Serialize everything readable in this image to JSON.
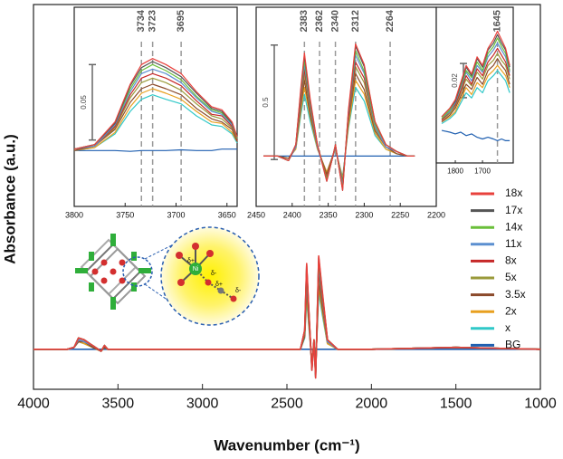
{
  "chart_data": [
    {
      "type": "line",
      "x_label": "Wavenumber (cm⁻¹)",
      "y_label": "Absorbance (a.u.)",
      "xlim": [
        4000,
        1000
      ],
      "xticks": [
        4000,
        3500,
        3000,
        2500,
        2000,
        1500,
        1000
      ],
      "ylim": [
        -0.21,
        1.81
      ],
      "legend": "right",
      "x": [
        4000,
        3800,
        3760,
        3734,
        3700,
        3650,
        3600,
        3580,
        3560,
        3500,
        3000,
        2500,
        2420,
        2395,
        2383,
        2370,
        2352,
        2340,
        2330,
        2312,
        2290,
        2260,
        2200,
        2000,
        1500,
        1000
      ],
      "series": [
        {
          "name": "18x",
          "color": "#e8413c",
          "values": [
            0,
            0,
            0.01,
            0.06,
            0.05,
            0.02,
            -0.01,
            0.02,
            0,
            0,
            0,
            0,
            0,
            0.1,
            0.45,
            0.2,
            -0.11,
            0.05,
            -0.15,
            0.49,
            0.3,
            0.05,
            0,
            0,
            0.01,
            0
          ]
        },
        {
          "name": "17x",
          "color": "#555555",
          "values": [
            0,
            0,
            0.01,
            0.06,
            0.05,
            0.02,
            -0.01,
            0.02,
            0,
            0,
            0,
            0,
            0,
            0.1,
            0.44,
            0.19,
            -0.11,
            0.05,
            -0.15,
            0.48,
            0.29,
            0.05,
            0,
            0,
            0.01,
            0
          ]
        },
        {
          "name": "14x",
          "color": "#6abf3a",
          "values": [
            0,
            0,
            0.01,
            0.06,
            0.05,
            0.02,
            -0.01,
            0.02,
            0,
            0,
            0,
            0,
            0,
            0.09,
            0.42,
            0.19,
            -0.1,
            0.05,
            -0.14,
            0.46,
            0.28,
            0.05,
            0,
            0,
            0.01,
            0
          ]
        },
        {
          "name": "11x",
          "color": "#5b8fd0",
          "values": [
            0,
            0,
            0.01,
            0.05,
            0.04,
            0.02,
            -0.01,
            0.02,
            0,
            0,
            0,
            0,
            0,
            0.09,
            0.4,
            0.18,
            -0.1,
            0.04,
            -0.13,
            0.44,
            0.27,
            0.04,
            0,
            0,
            0.01,
            0
          ]
        },
        {
          "name": "8x",
          "color": "#c62828",
          "values": [
            0,
            0,
            0.01,
            0.05,
            0.04,
            0.02,
            -0.01,
            0.02,
            0,
            0,
            0,
            0,
            0,
            0.08,
            0.38,
            0.17,
            -0.09,
            0.04,
            -0.13,
            0.41,
            0.25,
            0.04,
            0,
            0,
            0.01,
            0
          ]
        },
        {
          "name": "5x",
          "color": "#9a9a3a",
          "values": [
            0,
            0,
            0.01,
            0.05,
            0.04,
            0.02,
            -0.01,
            0.02,
            0,
            0,
            0,
            0,
            0,
            0.08,
            0.36,
            0.16,
            -0.09,
            0.04,
            -0.12,
            0.39,
            0.24,
            0.04,
            0,
            0,
            0.01,
            0
          ]
        },
        {
          "name": "3.5x",
          "color": "#8b4a2b",
          "values": [
            0,
            0,
            0.01,
            0.04,
            0.04,
            0.01,
            -0.01,
            0.01,
            0,
            0,
            0,
            0,
            0,
            0.07,
            0.33,
            0.15,
            -0.08,
            0.04,
            -0.11,
            0.36,
            0.22,
            0.04,
            0,
            0,
            0.01,
            0
          ]
        },
        {
          "name": "2x",
          "color": "#e8a020",
          "values": [
            0,
            0,
            0.01,
            0.04,
            0.03,
            0.01,
            -0.01,
            0.01,
            0,
            0,
            0,
            0,
            0,
            0.07,
            0.3,
            0.13,
            -0.07,
            0.03,
            -0.1,
            0.33,
            0.2,
            0.03,
            0,
            0,
            0.01,
            0
          ]
        },
        {
          "name": "x",
          "color": "#30c8c8",
          "values": [
            0,
            0,
            0.01,
            0.04,
            0.03,
            0.01,
            -0.01,
            0.01,
            0,
            0,
            0,
            0,
            0,
            0.06,
            0.27,
            0.12,
            -0.07,
            0.03,
            -0.09,
            0.3,
            0.18,
            0.03,
            0,
            0,
            0.01,
            0
          ]
        },
        {
          "name": "BG",
          "color": "#1f5fb0",
          "values": [
            0,
            0,
            0,
            0,
            0,
            0,
            0,
            0,
            0,
            0,
            0,
            0,
            0,
            0,
            0,
            0,
            0,
            0,
            0,
            0,
            0,
            0,
            0,
            0,
            0,
            0
          ]
        }
      ]
    },
    {
      "type": "line",
      "xlim": [
        3800,
        3640
      ],
      "xticks": [
        3800,
        3750,
        3700,
        3650
      ],
      "ylim": [
        -0.036,
        0.096
      ],
      "markers": [
        3734,
        3723,
        3695
      ],
      "scale_bar": 0.05,
      "x": [
        3800,
        3780,
        3760,
        3745,
        3734,
        3723,
        3710,
        3695,
        3680,
        3665,
        3655,
        3645,
        3640
      ],
      "series": [
        {
          "values": [
            0.002,
            0.005,
            0.02,
            0.045,
            0.058,
            0.062,
            0.058,
            0.052,
            0.04,
            0.03,
            0.028,
            0.02,
            0.01
          ]
        },
        {
          "values": [
            0.002,
            0.005,
            0.019,
            0.044,
            0.056,
            0.06,
            0.056,
            0.05,
            0.039,
            0.029,
            0.027,
            0.019,
            0.01
          ]
        },
        {
          "values": [
            0.002,
            0.005,
            0.019,
            0.042,
            0.054,
            0.058,
            0.054,
            0.048,
            0.037,
            0.028,
            0.026,
            0.019,
            0.009
          ]
        },
        {
          "values": [
            0.002,
            0.004,
            0.018,
            0.04,
            0.052,
            0.055,
            0.052,
            0.046,
            0.036,
            0.027,
            0.025,
            0.018,
            0.009
          ]
        },
        {
          "values": [
            0.002,
            0.004,
            0.017,
            0.038,
            0.049,
            0.052,
            0.049,
            0.044,
            0.034,
            0.025,
            0.024,
            0.017,
            0.008
          ]
        },
        {
          "values": [
            0.002,
            0.004,
            0.016,
            0.036,
            0.046,
            0.049,
            0.046,
            0.041,
            0.032,
            0.024,
            0.022,
            0.016,
            0.008
          ]
        },
        {
          "values": [
            0.001,
            0.004,
            0.015,
            0.033,
            0.042,
            0.045,
            0.042,
            0.038,
            0.029,
            0.022,
            0.02,
            0.015,
            0.007
          ]
        },
        {
          "values": [
            0.001,
            0.003,
            0.013,
            0.03,
            0.039,
            0.042,
            0.039,
            0.035,
            0.027,
            0.02,
            0.019,
            0.013,
            0.007
          ]
        },
        {
          "values": [
            0.001,
            0.003,
            0.012,
            0.027,
            0.035,
            0.038,
            0.035,
            0.032,
            0.024,
            0.018,
            0.017,
            0.012,
            0.006
          ]
        },
        {
          "values": [
            0.001,
            0.001,
            0.001,
            0.0005,
            0.001,
            0.001,
            0.001,
            0.0015,
            0.001,
            0.001,
            0.002,
            0.002,
            0.002
          ]
        }
      ]
    },
    {
      "type": "line",
      "xlim": [
        2450,
        2200
      ],
      "xticks": [
        2450,
        2400,
        2350,
        2300,
        2250,
        2200
      ],
      "ylim": [
        -0.22,
        0.65
      ],
      "markers": [
        2383,
        2362,
        2340,
        2312,
        2264
      ],
      "scale_bar": 0.5,
      "x": [
        2440,
        2420,
        2405,
        2395,
        2388,
        2383,
        2375,
        2365,
        2352,
        2345,
        2340,
        2335,
        2330,
        2322,
        2312,
        2300,
        2285,
        2270,
        2255,
        2240,
        2230
      ],
      "series": [
        {
          "values": [
            0,
            0,
            -0.02,
            0.05,
            0.3,
            0.45,
            0.25,
            0.05,
            -0.11,
            -0.02,
            0.05,
            -0.05,
            -0.15,
            0.2,
            0.49,
            0.4,
            0.15,
            0.05,
            0.02,
            0,
            0
          ]
        },
        {
          "values": [
            0,
            0,
            -0.02,
            0.05,
            0.29,
            0.44,
            0.24,
            0.05,
            -0.11,
            -0.02,
            0.05,
            -0.05,
            -0.15,
            0.19,
            0.48,
            0.39,
            0.15,
            0.05,
            0.02,
            0,
            0
          ]
        },
        {
          "values": [
            0,
            0,
            -0.02,
            0.05,
            0.28,
            0.42,
            0.23,
            0.05,
            -0.1,
            -0.02,
            0.05,
            -0.05,
            -0.14,
            0.19,
            0.46,
            0.37,
            0.14,
            0.05,
            0.02,
            0,
            0
          ]
        },
        {
          "values": [
            0,
            0,
            -0.02,
            0.04,
            0.27,
            0.4,
            0.22,
            0.04,
            -0.1,
            -0.02,
            0.04,
            -0.04,
            -0.13,
            0.18,
            0.44,
            0.36,
            0.13,
            0.04,
            0.02,
            0,
            0
          ]
        },
        {
          "values": [
            0,
            0,
            -0.02,
            0.04,
            0.25,
            0.38,
            0.21,
            0.04,
            -0.09,
            -0.02,
            0.04,
            -0.04,
            -0.13,
            0.17,
            0.41,
            0.34,
            0.13,
            0.04,
            0.02,
            0,
            0
          ]
        },
        {
          "values": [
            0,
            0,
            -0.02,
            0.04,
            0.24,
            0.36,
            0.2,
            0.04,
            -0.09,
            -0.02,
            0.04,
            -0.04,
            -0.12,
            0.16,
            0.39,
            0.32,
            0.12,
            0.04,
            0.02,
            0,
            0
          ]
        },
        {
          "values": [
            0,
            0,
            -0.01,
            0.04,
            0.22,
            0.33,
            0.18,
            0.04,
            -0.08,
            -0.01,
            0.04,
            -0.04,
            -0.11,
            0.15,
            0.36,
            0.29,
            0.11,
            0.04,
            0.01,
            0,
            0
          ]
        },
        {
          "values": [
            0,
            0,
            -0.01,
            0.03,
            0.2,
            0.3,
            0.17,
            0.03,
            -0.07,
            -0.01,
            0.03,
            -0.03,
            -0.1,
            0.13,
            0.33,
            0.27,
            0.1,
            0.03,
            0.01,
            0,
            0
          ]
        },
        {
          "values": [
            0,
            0,
            -0.01,
            0.03,
            0.18,
            0.27,
            0.15,
            0.03,
            -0.07,
            -0.01,
            0.03,
            -0.03,
            -0.09,
            0.12,
            0.3,
            0.24,
            0.09,
            0.03,
            0.01,
            0,
            0
          ]
        },
        {
          "values": [
            0,
            0,
            0,
            0,
            0,
            0,
            0,
            0,
            0,
            0,
            0,
            0,
            0,
            0,
            0,
            0,
            0,
            0,
            0,
            0,
            0
          ]
        }
      ]
    },
    {
      "type": "line",
      "xlim": [
        1870,
        1587
      ],
      "xticks": [
        1800,
        1700
      ],
      "ylim": [
        -0.017,
        0.074
      ],
      "markers": [
        1645
      ],
      "scale_bar": 0.02,
      "x": [
        1850,
        1820,
        1800,
        1780,
        1760,
        1740,
        1720,
        1700,
        1680,
        1660,
        1645,
        1630,
        1615,
        1600
      ],
      "series": [
        {
          "values": [
            0.01,
            0.015,
            0.02,
            0.03,
            0.04,
            0.035,
            0.045,
            0.04,
            0.05,
            0.055,
            0.06,
            0.055,
            0.05,
            0.04
          ]
        },
        {
          "values": [
            0.01,
            0.015,
            0.019,
            0.029,
            0.039,
            0.034,
            0.044,
            0.039,
            0.049,
            0.053,
            0.058,
            0.053,
            0.049,
            0.039
          ]
        },
        {
          "values": [
            0.009,
            0.014,
            0.019,
            0.028,
            0.037,
            0.033,
            0.042,
            0.037,
            0.047,
            0.051,
            0.056,
            0.051,
            0.047,
            0.037
          ]
        },
        {
          "values": [
            0.009,
            0.013,
            0.018,
            0.027,
            0.036,
            0.031,
            0.04,
            0.036,
            0.045,
            0.049,
            0.053,
            0.049,
            0.045,
            0.036
          ]
        },
        {
          "values": [
            0.008,
            0.013,
            0.017,
            0.025,
            0.034,
            0.029,
            0.038,
            0.034,
            0.042,
            0.046,
            0.05,
            0.046,
            0.042,
            0.034
          ]
        },
        {
          "values": [
            0.008,
            0.012,
            0.016,
            0.024,
            0.032,
            0.028,
            0.036,
            0.032,
            0.04,
            0.043,
            0.047,
            0.043,
            0.04,
            0.032
          ]
        },
        {
          "values": [
            0.007,
            0.011,
            0.015,
            0.022,
            0.029,
            0.026,
            0.033,
            0.029,
            0.037,
            0.04,
            0.044,
            0.04,
            0.037,
            0.029
          ]
        },
        {
          "values": [
            0.007,
            0.01,
            0.013,
            0.02,
            0.027,
            0.023,
            0.03,
            0.027,
            0.034,
            0.037,
            0.04,
            0.037,
            0.034,
            0.027
          ]
        },
        {
          "values": [
            0.006,
            0.009,
            0.012,
            0.018,
            0.024,
            0.021,
            0.027,
            0.024,
            0.031,
            0.034,
            0.037,
            0.034,
            0.031,
            0.024
          ]
        },
        {
          "values": [
            0.002,
            0.001,
            0,
            0.001,
            -0.001,
            0,
            -0.002,
            -0.003,
            -0.002,
            -0.003,
            -0.004,
            -0.003,
            -0.004,
            -0.004
          ]
        }
      ]
    }
  ],
  "illustration": {
    "metal": "Ni",
    "charges": [
      "δ+",
      "δ+",
      "δ-",
      "δ-"
    ]
  }
}
